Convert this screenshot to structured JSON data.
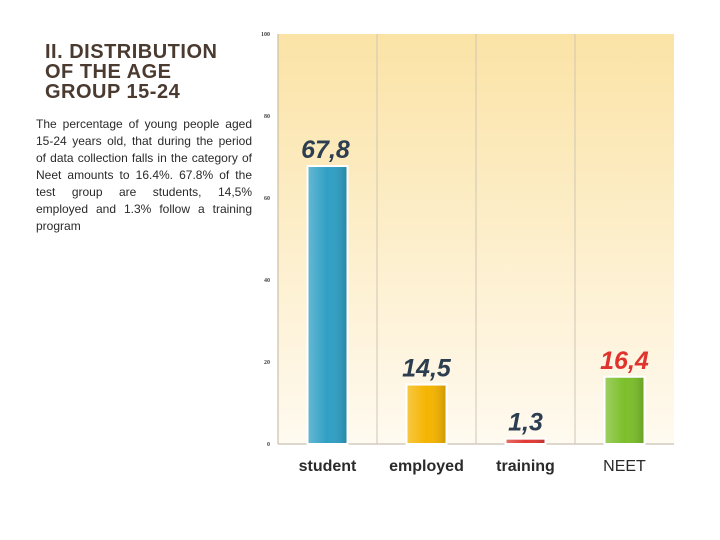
{
  "slide": {
    "title": "II. DISTRIBUTION\nOF THE AGE\nGROUP 15-24",
    "description": "The percentage of young people aged 15-24 years old, that during the period of data collection falls in the category of Neet amounts to 16.4%. 67.8% of the test group are students, 14,5% employed and 1.3% follow a training program"
  },
  "chart_data": {
    "type": "bar",
    "categories": [
      "student",
      "employed",
      "training",
      "NEET"
    ],
    "values": [
      67.8,
      14.5,
      1.3,
      16.4
    ],
    "value_labels": [
      "67,8",
      "14,5",
      "1,3",
      "16,4"
    ],
    "ylim": [
      0,
      100
    ],
    "yticks": [
      0,
      20,
      40,
      60,
      80,
      100
    ],
    "grid": "vertical separators",
    "bar_colors": [
      "#2f9fc4",
      "#f5b400",
      "#e03a33",
      "#7cbf2a"
    ],
    "label_colors": [
      "#2c3e50",
      "#2c3e50",
      "#2c3e50",
      "#e0332e"
    ],
    "category_weights": [
      "bold",
      "bold",
      "bold",
      "normal"
    ]
  }
}
